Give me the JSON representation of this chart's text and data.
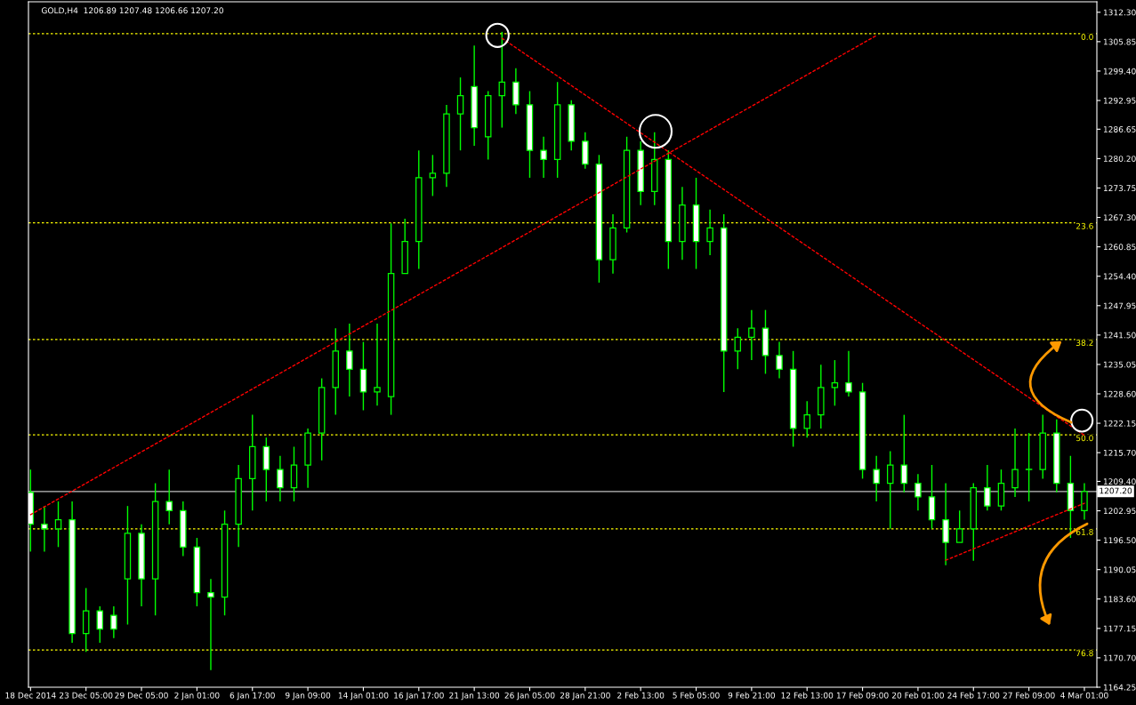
{
  "chart_data": {
    "type": "candlestick",
    "title": "GOLD,H4  1206.89 1207.48 1206.66 1207.20",
    "categories": [
      "18 Dec 2014",
      null,
      null,
      null,
      "23 Dec 05:00",
      null,
      null,
      null,
      "29 Dec 05:00",
      null,
      null,
      null,
      "2 Jan 01:00",
      null,
      null,
      null,
      "6 Jan 17:00",
      null,
      null,
      null,
      "9 Jan 09:00",
      null,
      null,
      null,
      "14 Jan 01:00",
      null,
      null,
      null,
      "16 Jan 17:00",
      null,
      null,
      null,
      "21 Jan 13:00",
      null,
      null,
      null,
      "26 Jan 05:00",
      null,
      null,
      null,
      "28 Jan 21:00",
      null,
      null,
      null,
      "2 Feb 13:00",
      null,
      null,
      null,
      "5 Feb 05:00",
      null,
      null,
      null,
      "9 Feb 21:00",
      null,
      null,
      null,
      "12 Feb 13:00",
      null,
      null,
      null,
      "17 Feb 09:00",
      null,
      null,
      null,
      "20 Feb 01:00",
      null,
      null,
      null,
      "24 Feb 17:00",
      null,
      null,
      null,
      "27 Feb 09:00",
      null,
      null,
      null,
      "4 Mar 01:00"
    ],
    "color": "#00ff00",
    "ohlc": [
      [
        1207,
        1212,
        1194,
        1200
      ],
      [
        1200,
        1204,
        1194,
        1199
      ],
      [
        1199,
        1205,
        1195,
        1201
      ],
      [
        1201,
        1205,
        1174,
        1176
      ],
      [
        1176,
        1186,
        1172,
        1181
      ],
      [
        1181,
        1182,
        1174,
        1177
      ],
      [
        1180,
        1182,
        1175,
        1177
      ],
      [
        1188,
        1204,
        1178,
        1198
      ],
      [
        1198,
        1200,
        1182,
        1188
      ],
      [
        1188,
        1209,
        1180,
        1205
      ],
      [
        1205,
        1212,
        1200,
        1203
      ],
      [
        1203,
        1205,
        1193,
        1195
      ],
      [
        1195,
        1197,
        1182,
        1185
      ],
      [
        1185,
        1188,
        1168,
        1184
      ],
      [
        1184,
        1203,
        1180,
        1200
      ],
      [
        1200,
        1213,
        1195,
        1210
      ],
      [
        1210,
        1224,
        1203,
        1217
      ],
      [
        1217,
        1219,
        1205,
        1212
      ],
      [
        1212,
        1215,
        1205,
        1208
      ],
      [
        1208,
        1217,
        1205,
        1213
      ],
      [
        1213,
        1221,
        1208,
        1220
      ],
      [
        1220,
        1232,
        1214,
        1230
      ],
      [
        1230,
        1243,
        1224,
        1238
      ],
      [
        1238,
        1244,
        1228,
        1234
      ],
      [
        1234,
        1240,
        1225,
        1229
      ],
      [
        1229,
        1244,
        1226,
        1230
      ],
      [
        1228,
        1266,
        1224,
        1255
      ],
      [
        1255,
        1267,
        1255,
        1262
      ],
      [
        1262,
        1282,
        1256,
        1276
      ],
      [
        1276,
        1281,
        1272,
        1277
      ],
      [
        1277,
        1292,
        1274,
        1290
      ],
      [
        1290,
        1298,
        1282,
        1294
      ],
      [
        1296,
        1305,
        1283,
        1287
      ],
      [
        1285,
        1295,
        1280,
        1294
      ],
      [
        1294,
        1308,
        1287,
        1297
      ],
      [
        1297,
        1300,
        1290,
        1292
      ],
      [
        1292,
        1295,
        1276,
        1282
      ],
      [
        1282,
        1285,
        1276,
        1280
      ],
      [
        1280,
        1297,
        1276,
        1292
      ],
      [
        1292,
        1293,
        1282,
        1284
      ],
      [
        1284,
        1286,
        1278,
        1279
      ],
      [
        1279,
        1281,
        1253,
        1258
      ],
      [
        1258,
        1268,
        1255,
        1265
      ],
      [
        1265,
        1285,
        1264,
        1282
      ],
      [
        1282,
        1284,
        1270,
        1273
      ],
      [
        1273,
        1286,
        1270,
        1280
      ],
      [
        1280,
        1282,
        1256,
        1262
      ],
      [
        1262,
        1274,
        1258,
        1270
      ],
      [
        1270,
        1276,
        1256,
        1262
      ],
      [
        1262,
        1269,
        1259,
        1265
      ],
      [
        1265,
        1268,
        1229,
        1238
      ],
      [
        1238,
        1243,
        1234,
        1241
      ],
      [
        1241,
        1247,
        1236,
        1243
      ],
      [
        1243,
        1247,
        1233,
        1237
      ],
      [
        1237,
        1240,
        1232,
        1234
      ],
      [
        1234,
        1238,
        1217,
        1221
      ],
      [
        1221,
        1227,
        1219,
        1224
      ],
      [
        1224,
        1235,
        1221,
        1230
      ],
      [
        1230,
        1236,
        1226,
        1231
      ],
      [
        1231,
        1238,
        1228,
        1229
      ],
      [
        1229,
        1231,
        1210,
        1212
      ],
      [
        1212,
        1215,
        1205,
        1209
      ],
      [
        1209,
        1216,
        1199,
        1213
      ],
      [
        1213,
        1224,
        1207,
        1209
      ],
      [
        1209,
        1211,
        1203,
        1206
      ],
      [
        1206,
        1213,
        1199,
        1201
      ],
      [
        1201,
        1209,
        1191,
        1196
      ],
      [
        1196,
        1203,
        1196,
        1199
      ],
      [
        1199,
        1209,
        1192,
        1208
      ],
      [
        1208,
        1213,
        1203,
        1204
      ],
      [
        1204,
        1212,
        1203,
        1209
      ],
      [
        1208,
        1221,
        1206,
        1212
      ],
      [
        1212,
        1220,
        1205,
        1212
      ],
      [
        1212,
        1224,
        1210,
        1220
      ],
      [
        1220,
        1223,
        1207,
        1209
      ],
      [
        1209,
        1215,
        1197,
        1203
      ],
      [
        1203,
        1209,
        1201,
        1207.2
      ]
    ],
    "series": [
      {
        "type": "line",
        "color": "#ff0000",
        "line_style": "dashed",
        "values": [
          1202.1,
          null,
          null,
          null,
          null,
          null,
          null,
          null,
          null,
          null,
          null,
          null,
          null,
          null,
          null,
          null,
          null,
          null,
          null,
          null,
          null,
          null,
          null,
          null,
          null,
          null,
          null,
          null,
          null,
          null,
          null,
          null,
          null,
          null,
          null,
          null,
          null,
          null,
          null,
          null,
          null,
          null,
          null,
          null,
          null,
          null,
          null,
          null,
          null,
          null,
          null,
          null,
          null,
          null,
          null,
          null,
          null,
          null,
          null,
          null,
          null,
          1307.2,
          null,
          null,
          null,
          null,
          null,
          null,
          null,
          null,
          null,
          null,
          null,
          null,
          null,
          null,
          null
        ]
      },
      {
        "type": "line",
        "color": "#ff0000",
        "line_style": "dashed",
        "values": [
          null,
          null,
          null,
          null,
          null,
          null,
          null,
          null,
          null,
          null,
          null,
          null,
          null,
          null,
          null,
          null,
          null,
          null,
          null,
          null,
          null,
          null,
          null,
          null,
          null,
          null,
          null,
          null,
          null,
          null,
          null,
          null,
          null,
          null,
          1306.6,
          null,
          null,
          null,
          null,
          null,
          null,
          null,
          null,
          null,
          null,
          null,
          null,
          null,
          null,
          null,
          null,
          null,
          null,
          null,
          null,
          null,
          null,
          null,
          null,
          null,
          null,
          null,
          null,
          null,
          null,
          null,
          null,
          null,
          null,
          null,
          null,
          null,
          null,
          null,
          null,
          null,
          1219.5
        ]
      },
      {
        "type": "line",
        "color": "#ff0000",
        "line_style": "dashed",
        "values": [
          null,
          null,
          null,
          null,
          null,
          null,
          null,
          null,
          null,
          null,
          null,
          null,
          null,
          null,
          null,
          null,
          null,
          null,
          null,
          null,
          null,
          null,
          null,
          null,
          null,
          null,
          null,
          null,
          null,
          null,
          null,
          null,
          null,
          null,
          null,
          null,
          null,
          null,
          null,
          null,
          null,
          null,
          null,
          null,
          null,
          null,
          null,
          null,
          null,
          null,
          null,
          null,
          null,
          null,
          null,
          null,
          null,
          null,
          null,
          null,
          null,
          null,
          null,
          null,
          null,
          null,
          1192.1,
          null,
          null,
          null,
          null,
          null,
          null,
          null,
          null,
          null,
          1204.6
        ]
      }
    ],
    "ylim": [
      1164.25,
      1314.6
    ],
    "yticks": [
      {
        "value": 1312.3,
        "label": "1312.30"
      },
      {
        "value": 1305.85,
        "label": "1305.85"
      },
      {
        "value": 1299.4,
        "label": "1299.40"
      },
      {
        "value": 1292.95,
        "label": "1292.95"
      },
      {
        "value": 1286.65,
        "label": "1286.65"
      },
      {
        "value": 1280.2,
        "label": "1280.20"
      },
      {
        "value": 1273.75,
        "label": "1273.75"
      },
      {
        "value": 1267.3,
        "label": "1267.30"
      },
      {
        "value": 1260.85,
        "label": "1260.85"
      },
      {
        "value": 1254.4,
        "label": "1254.40"
      },
      {
        "value": 1247.95,
        "label": "1247.95"
      },
      {
        "value": 1241.5,
        "label": "1241.50"
      },
      {
        "value": 1235.05,
        "label": "1235.05"
      },
      {
        "value": 1228.6,
        "label": "1228.60"
      },
      {
        "value": 1222.15,
        "label": "1222.15"
      },
      {
        "value": 1215.7,
        "label": "1215.70"
      },
      {
        "value": 1209.4,
        "label": "1209.40"
      },
      {
        "value": 1202.95,
        "label": "1202.95"
      },
      {
        "value": 1196.5,
        "label": "1196.50"
      },
      {
        "value": 1190.05,
        "label": "1190.05"
      },
      {
        "value": 1183.6,
        "label": "1183.60"
      },
      {
        "value": 1177.15,
        "label": "1177.15"
      },
      {
        "value": 1170.7,
        "label": "1170.70"
      },
      {
        "value": 1164.25,
        "label": "1164.25"
      }
    ],
    "ref_lines": [
      {
        "axis": "y",
        "value": 1307.6,
        "color": "#ffff00",
        "line_style": "dashed"
      },
      {
        "axis": "y",
        "value": 1266.1,
        "color": "#ffff00",
        "line_style": "dashed"
      },
      {
        "axis": "y",
        "value": 1240.5,
        "color": "#ffff00",
        "line_style": "dashed"
      },
      {
        "axis": "y",
        "value": 1219.6,
        "color": "#ffff00",
        "line_style": "dashed"
      },
      {
        "axis": "y",
        "value": 1199.0,
        "color": "#ffff00",
        "line_style": "dashed"
      },
      {
        "axis": "y",
        "value": 1172.4,
        "color": "#ffff00",
        "line_style": "dashed"
      },
      {
        "axis": "y",
        "value": 1207.2,
        "label": "1207.20",
        "color": "#c0c0c0",
        "line_style": "solid"
      }
    ],
    "annotations": [
      {
        "text": "0.0",
        "y": 1307.6
      },
      {
        "text": "23.6",
        "y": 1266.1
      },
      {
        "text": "38.2",
        "y": 1240.5
      },
      {
        "text": "50.0",
        "y": 1219.6
      },
      {
        "text": "61.8",
        "y": 1199.0
      },
      {
        "text": "76.8",
        "y": 1172.4
      }
    ]
  }
}
